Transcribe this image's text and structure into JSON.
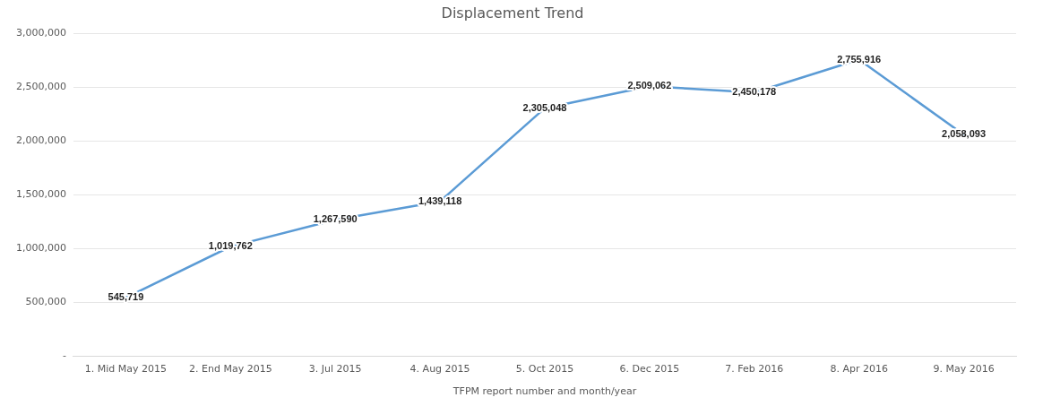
{
  "chart_data": {
    "type": "line",
    "title": "Displacement Trend",
    "xlabel": "TFPM report number and month/year",
    "categories": [
      "1. Mid May 2015",
      "2. End May 2015",
      "3. Jul 2015",
      "4. Aug 2015",
      "5. Oct 2015",
      "6. Dec 2015",
      "7. Feb 2016",
      "8. Apr 2016",
      "9. May 2016"
    ],
    "series": [
      {
        "color": "#5b9bd5",
        "values": [
          545719,
          1019762,
          1267590,
          1439118,
          2305048,
          2509062,
          2450178,
          2755916,
          2058093
        ],
        "value_labels": [
          "545,719",
          "1,019,762",
          "1,267,590",
          "1,439,118",
          "2,305,048",
          "2,509,062",
          "2,450,178",
          "2,755,916",
          "2,058,093"
        ]
      }
    ],
    "ylim": [
      0,
      3000000
    ],
    "yticks": [
      {
        "value": 0,
        "label": "-"
      },
      {
        "value": 500000,
        "label": "500,000"
      },
      {
        "value": 1000000,
        "label": "1,000,000"
      },
      {
        "value": 1500000,
        "label": "1,500,000"
      },
      {
        "value": 2000000,
        "label": "2,000,000"
      },
      {
        "value": 2500000,
        "label": "2,500,000"
      },
      {
        "value": 3000000,
        "label": "3,000,000"
      }
    ],
    "grid": "y",
    "legend": false,
    "marker": "none",
    "line_style": "solid"
  }
}
